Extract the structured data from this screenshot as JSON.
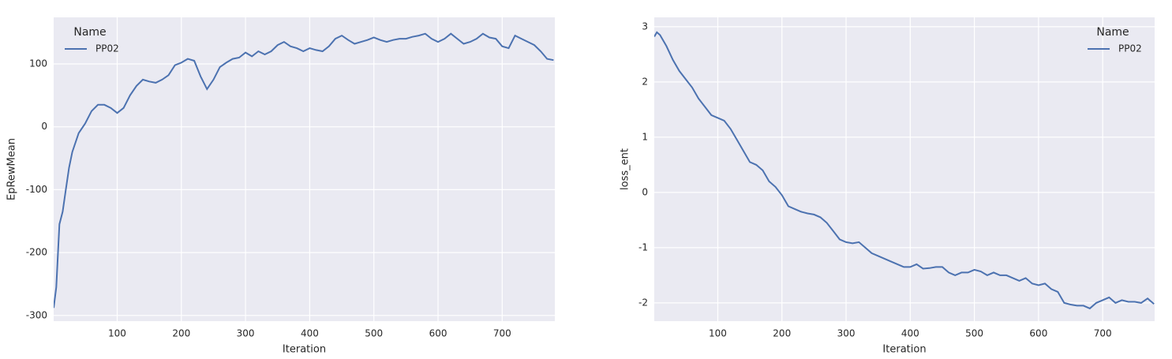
{
  "chart_data": [
    {
      "type": "line",
      "x_label": "Iteration",
      "y_label": "EpRewMean",
      "x": [
        1,
        5,
        10,
        15,
        20,
        25,
        30,
        40,
        50,
        60,
        70,
        80,
        90,
        100,
        110,
        120,
        130,
        140,
        150,
        160,
        170,
        180,
        190,
        200,
        210,
        220,
        230,
        240,
        250,
        260,
        270,
        280,
        290,
        300,
        310,
        320,
        330,
        340,
        350,
        360,
        370,
        380,
        390,
        400,
        410,
        420,
        430,
        440,
        450,
        460,
        470,
        480,
        490,
        500,
        510,
        520,
        530,
        540,
        550,
        560,
        570,
        580,
        590,
        600,
        610,
        620,
        630,
        640,
        650,
        660,
        670,
        680,
        690,
        700,
        710,
        720,
        730,
        740,
        750,
        760,
        770,
        780
      ],
      "series": [
        {
          "name": "PP02",
          "color": "#4c72b0",
          "values": [
            -288,
            -255,
            -155,
            -135,
            -100,
            -65,
            -40,
            -10,
            5,
            25,
            35,
            35,
            30,
            22,
            30,
            50,
            65,
            75,
            72,
            70,
            75,
            82,
            98,
            102,
            108,
            105,
            80,
            60,
            75,
            95,
            102,
            108,
            110,
            118,
            112,
            120,
            115,
            120,
            130,
            135,
            128,
            125,
            120,
            125,
            122,
            120,
            128,
            140,
            145,
            138,
            132,
            135,
            138,
            142,
            138,
            135,
            138,
            140,
            140,
            143,
            145,
            148,
            140,
            135,
            140,
            148,
            140,
            132,
            135,
            140,
            148,
            142,
            140,
            128,
            125,
            145,
            140,
            135,
            130,
            120,
            108,
            106
          ]
        }
      ],
      "xlim": [
        1,
        782
      ],
      "ylim": [
        -309,
        174
      ],
      "xticks": [
        100,
        200,
        300,
        400,
        500,
        600,
        700
      ],
      "yticks": [
        -300,
        -200,
        -100,
        0,
        100
      ],
      "grid": true,
      "legend_title": "Name",
      "legend": "upper left"
    },
    {
      "type": "line",
      "x_label": "Iteration",
      "y_label": "loss_ent",
      "x": [
        1,
        5,
        10,
        20,
        30,
        40,
        50,
        60,
        70,
        80,
        90,
        100,
        110,
        120,
        130,
        140,
        150,
        160,
        170,
        180,
        190,
        200,
        210,
        220,
        230,
        240,
        250,
        260,
        270,
        280,
        290,
        300,
        310,
        320,
        330,
        340,
        350,
        360,
        370,
        380,
        390,
        400,
        410,
        420,
        430,
        440,
        450,
        460,
        470,
        480,
        490,
        500,
        510,
        520,
        530,
        540,
        550,
        560,
        570,
        580,
        590,
        600,
        610,
        620,
        630,
        640,
        650,
        660,
        670,
        680,
        690,
        700,
        710,
        720,
        730,
        740,
        750,
        760,
        770,
        780
      ],
      "series": [
        {
          "name": "PP02",
          "color": "#4c72b0",
          "values": [
            2.82,
            2.9,
            2.85,
            2.65,
            2.4,
            2.2,
            2.05,
            1.9,
            1.7,
            1.55,
            1.4,
            1.35,
            1.3,
            1.15,
            0.95,
            0.75,
            0.55,
            0.5,
            0.4,
            0.2,
            0.1,
            -0.05,
            -0.25,
            -0.3,
            -0.35,
            -0.38,
            -0.4,
            -0.45,
            -0.55,
            -0.7,
            -0.85,
            -0.9,
            -0.92,
            -0.9,
            -1.0,
            -1.1,
            -1.15,
            -1.2,
            -1.25,
            -1.3,
            -1.35,
            -1.35,
            -1.3,
            -1.38,
            -1.37,
            -1.35,
            -1.35,
            -1.45,
            -1.5,
            -1.45,
            -1.45,
            -1.4,
            -1.43,
            -1.5,
            -1.45,
            -1.5,
            -1.5,
            -1.55,
            -1.6,
            -1.55,
            -1.65,
            -1.68,
            -1.65,
            -1.75,
            -1.8,
            -2.0,
            -2.03,
            -2.05,
            -2.05,
            -2.1,
            -2.0,
            -1.95,
            -1.9,
            -2.0,
            -1.95,
            -1.98,
            -1.98,
            -2.0,
            -1.92,
            -2.02
          ]
        }
      ],
      "xlim": [
        1,
        781
      ],
      "ylim": [
        -2.33,
        3.17
      ],
      "xticks": [
        100,
        200,
        300,
        400,
        500,
        600,
        700
      ],
      "yticks": [
        -2,
        -1,
        0,
        1,
        2,
        3
      ],
      "grid": true,
      "legend_title": "Name",
      "legend": "upper right"
    }
  ]
}
